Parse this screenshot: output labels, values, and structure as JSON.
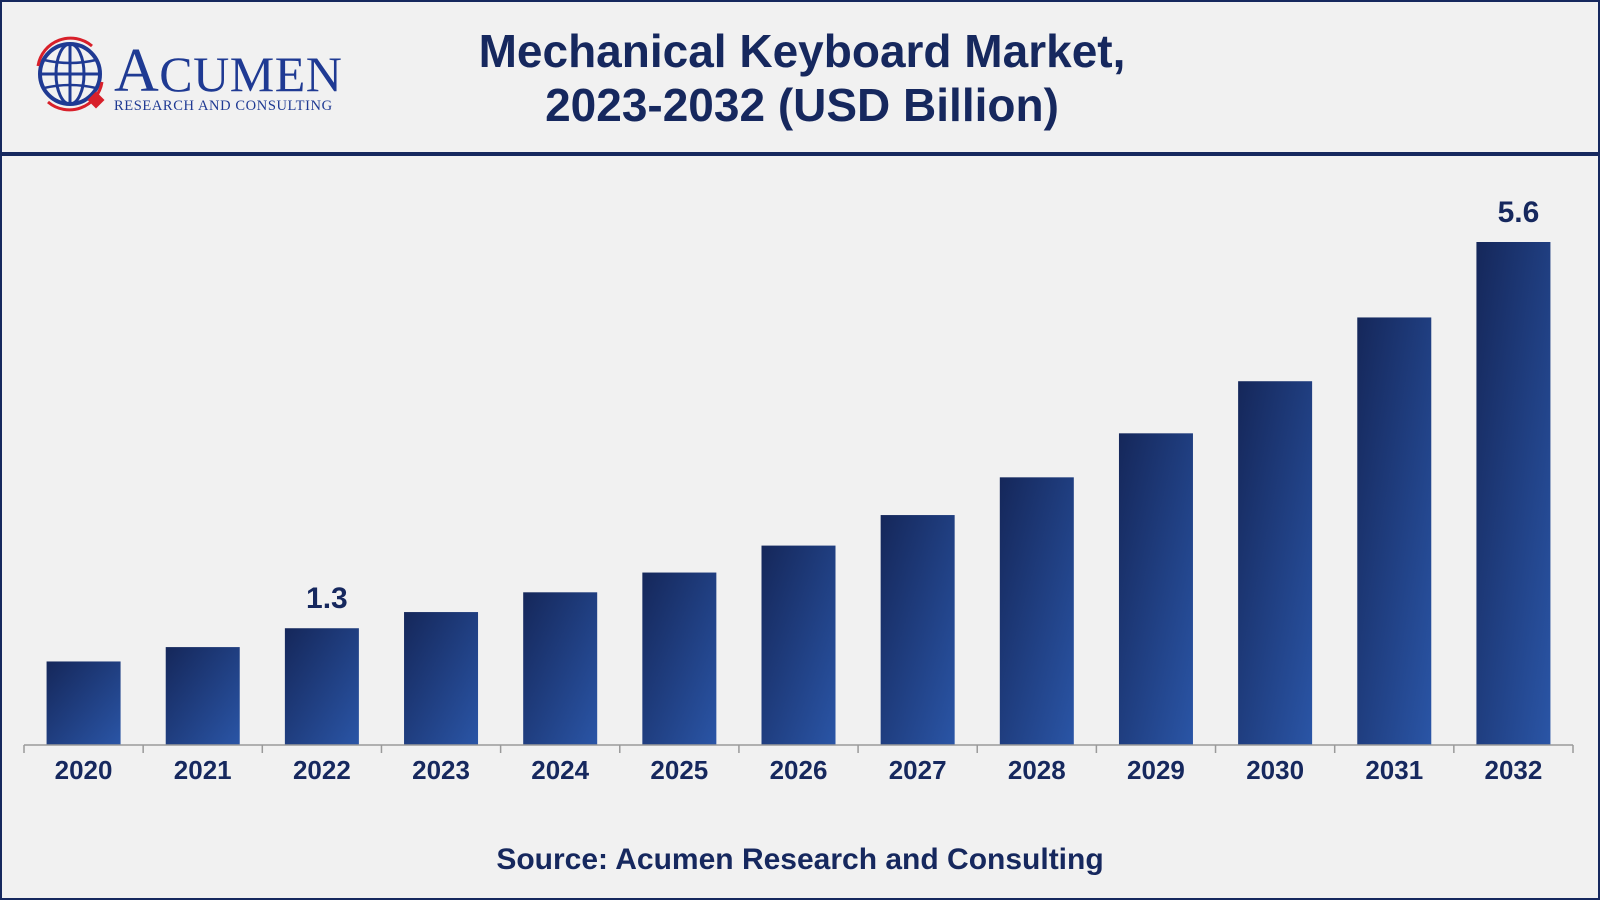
{
  "header": {
    "logo": {
      "name": "Acumen",
      "wordmark_initial": "A",
      "wordmark_rest": "CUMEN",
      "tagline": "RESEARCH AND CONSULTING",
      "icon": "globe-icon"
    },
    "title_line1": "Mechanical Keyboard Market,",
    "title_line2": "2023-2032 (USD Billion)"
  },
  "chart_data": {
    "type": "bar",
    "title": "Mechanical Keyboard Market, 2023-2032 (USD Billion)",
    "categories": [
      "2020",
      "2021",
      "2022",
      "2023",
      "2024",
      "2025",
      "2026",
      "2027",
      "2028",
      "2029",
      "2030",
      "2031",
      "2032"
    ],
    "values": [
      0.93,
      1.09,
      1.3,
      1.48,
      1.7,
      1.92,
      2.22,
      2.56,
      2.98,
      3.47,
      4.05,
      4.76,
      5.6
    ],
    "data_labels": [
      {
        "category": "2022",
        "text": "1.3"
      },
      {
        "category": "2032",
        "text": "5.6"
      }
    ],
    "xlabel": "",
    "ylabel": "",
    "ylim": [
      0,
      5.6
    ],
    "grid": false,
    "legend": "none",
    "colors": {
      "bar_dark": "#15275a",
      "bar_light": "#2a55a6",
      "axis": "#9a9a9a",
      "text": "#16285e"
    }
  },
  "footer": {
    "source": "Source: Acumen Research and Consulting"
  }
}
